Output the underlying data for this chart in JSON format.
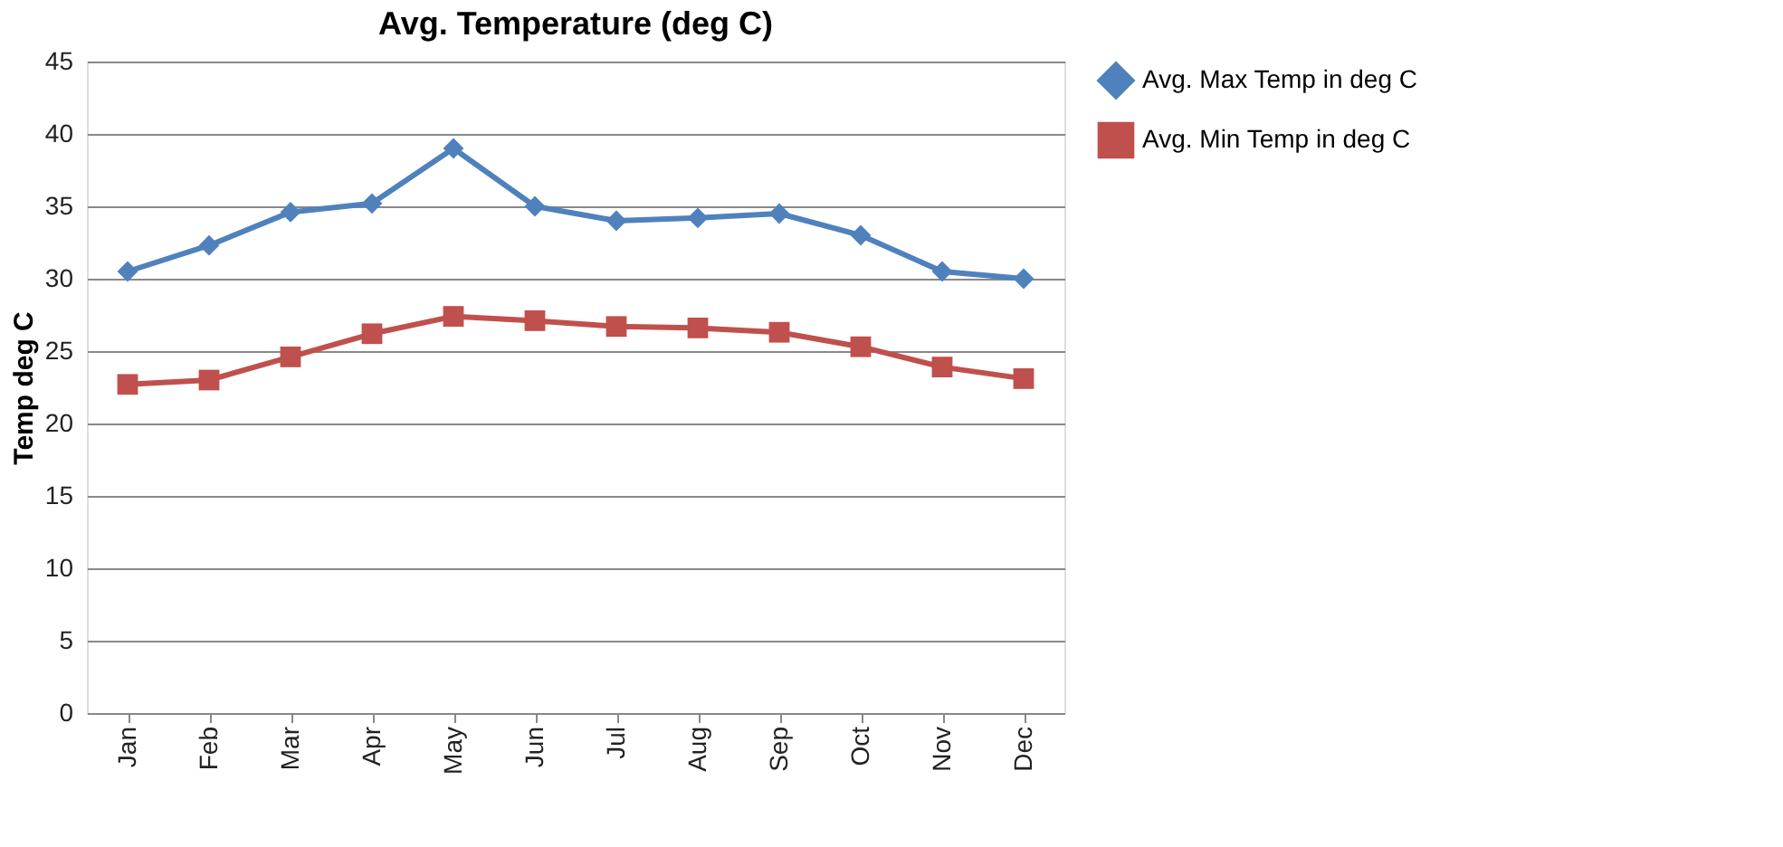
{
  "chart_data": {
    "type": "line",
    "title": "Avg. Temperature (deg C)",
    "ylabel": "Temp  deg C",
    "categories": [
      "Jan",
      "Feb",
      "Mar",
      "Apr",
      "May",
      "Jun",
      "Jul",
      "Aug",
      "Sep",
      "Oct",
      "Nov",
      "Dec"
    ],
    "series": [
      {
        "name": "Avg. Max Temp in deg C",
        "color": "#4f81bd",
        "marker": "diamond",
        "values": [
          30.5,
          32.3,
          34.6,
          35.2,
          39.0,
          35.0,
          34.0,
          34.2,
          34.5,
          33.0,
          30.5,
          30.0
        ]
      },
      {
        "name": "Avg. Min Temp in deg C",
        "color": "#c0504d",
        "marker": "square",
        "values": [
          22.7,
          23.0,
          24.6,
          26.2,
          27.4,
          27.1,
          26.7,
          26.6,
          26.3,
          25.3,
          23.9,
          23.1
        ]
      }
    ],
    "ylim": [
      0,
      45
    ],
    "yticks": [
      0,
      5,
      10,
      15,
      20,
      25,
      30,
      35,
      40,
      45
    ],
    "grid": "y",
    "legend": "right",
    "line_style": "solid"
  }
}
